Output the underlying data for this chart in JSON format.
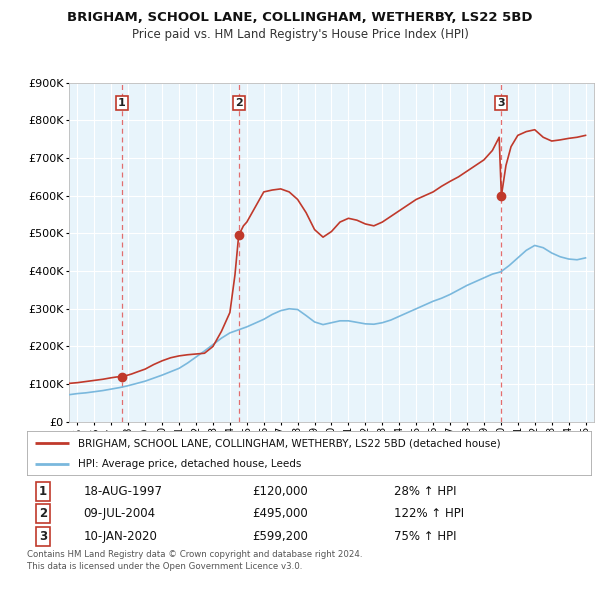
{
  "title": "BRIGHAM, SCHOOL LANE, COLLINGHAM, WETHERBY, LS22 5BD",
  "subtitle": "Price paid vs. HM Land Registry's House Price Index (HPI)",
  "legend_line1": "BRIGHAM, SCHOOL LANE, COLLINGHAM, WETHERBY, LS22 5BD (detached house)",
  "legend_line2": "HPI: Average price, detached house, Leeds",
  "footer1": "Contains HM Land Registry data © Crown copyright and database right 2024.",
  "footer2": "This data is licensed under the Open Government Licence v3.0.",
  "transactions": [
    {
      "num": 1,
      "date": "18-AUG-1997",
      "price": 120000,
      "hpi": "28% ↑ HPI",
      "x": 1997.63
    },
    {
      "num": 2,
      "date": "09-JUL-2004",
      "price": 495000,
      "hpi": "122% ↑ HPI",
      "x": 2004.52
    },
    {
      "num": 3,
      "date": "10-JAN-2020",
      "price": 599200,
      "hpi": "75% ↑ HPI",
      "x": 2020.03
    }
  ],
  "hpi_color": "#7ab8dd",
  "price_color": "#c0392b",
  "vline_color": "#e05555",
  "background_plot": "#e8f4fb",
  "background_fig": "#ffffff",
  "grid_color": "#ffffff",
  "ylim": [
    0,
    900000
  ],
  "xlim": [
    1994.5,
    2025.5
  ],
  "hpi_x": [
    1994.5,
    1995.0,
    1995.5,
    1996.0,
    1996.5,
    1997.0,
    1997.5,
    1998.0,
    1998.5,
    1999.0,
    1999.5,
    2000.0,
    2000.5,
    2001.0,
    2001.5,
    2002.0,
    2002.5,
    2003.0,
    2003.5,
    2004.0,
    2004.5,
    2005.0,
    2005.5,
    2006.0,
    2006.5,
    2007.0,
    2007.5,
    2008.0,
    2008.5,
    2009.0,
    2009.5,
    2010.0,
    2010.5,
    2011.0,
    2011.5,
    2012.0,
    2012.5,
    2013.0,
    2013.5,
    2014.0,
    2014.5,
    2015.0,
    2015.5,
    2016.0,
    2016.5,
    2017.0,
    2017.5,
    2018.0,
    2018.5,
    2019.0,
    2019.5,
    2020.0,
    2020.5,
    2021.0,
    2021.5,
    2022.0,
    2022.5,
    2023.0,
    2023.5,
    2024.0,
    2024.5,
    2025.0
  ],
  "hpi_y": [
    72000,
    75000,
    77000,
    80000,
    83000,
    87000,
    91000,
    96000,
    102000,
    108000,
    116000,
    124000,
    133000,
    142000,
    156000,
    172000,
    188000,
    205000,
    222000,
    236000,
    244000,
    252000,
    262000,
    272000,
    285000,
    295000,
    300000,
    298000,
    282000,
    265000,
    258000,
    263000,
    268000,
    268000,
    264000,
    260000,
    259000,
    263000,
    270000,
    280000,
    290000,
    300000,
    310000,
    320000,
    328000,
    338000,
    350000,
    362000,
    372000,
    382000,
    392000,
    398000,
    415000,
    435000,
    455000,
    468000,
    462000,
    448000,
    438000,
    432000,
    430000,
    435000
  ],
  "price_x": [
    1994.5,
    1995.0,
    1995.5,
    1996.0,
    1996.5,
    1997.0,
    1997.3,
    1997.63,
    1997.9,
    1998.2,
    1998.5,
    1999.0,
    1999.5,
    2000.0,
    2000.5,
    2001.0,
    2001.5,
    2002.0,
    2002.5,
    2003.0,
    2003.5,
    2004.0,
    2004.3,
    2004.52,
    2004.8,
    2005.0,
    2005.5,
    2006.0,
    2006.5,
    2007.0,
    2007.5,
    2008.0,
    2008.5,
    2009.0,
    2009.5,
    2010.0,
    2010.5,
    2011.0,
    2011.5,
    2012.0,
    2012.5,
    2013.0,
    2013.5,
    2014.0,
    2014.5,
    2015.0,
    2015.5,
    2016.0,
    2016.5,
    2017.0,
    2017.5,
    2018.0,
    2018.5,
    2019.0,
    2019.5,
    2019.9,
    2020.03,
    2020.3,
    2020.6,
    2021.0,
    2021.5,
    2022.0,
    2022.5,
    2023.0,
    2023.5,
    2024.0,
    2024.5,
    2025.0
  ],
  "price_y": [
    102000,
    104000,
    107000,
    110000,
    113000,
    117000,
    119000,
    120000,
    123000,
    127000,
    132000,
    140000,
    152000,
    162000,
    170000,
    175000,
    178000,
    180000,
    182000,
    200000,
    240000,
    290000,
    390000,
    495000,
    520000,
    530000,
    570000,
    610000,
    615000,
    618000,
    610000,
    590000,
    555000,
    510000,
    490000,
    505000,
    530000,
    540000,
    535000,
    525000,
    520000,
    530000,
    545000,
    560000,
    575000,
    590000,
    600000,
    610000,
    625000,
    638000,
    650000,
    665000,
    680000,
    695000,
    720000,
    755000,
    599200,
    680000,
    730000,
    760000,
    770000,
    775000,
    755000,
    745000,
    748000,
    752000,
    755000,
    760000
  ]
}
